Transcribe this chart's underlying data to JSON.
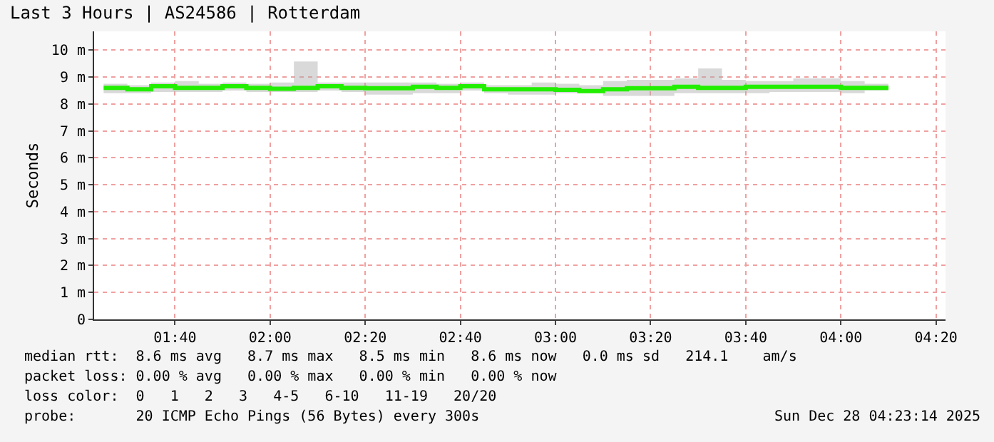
{
  "chart_data": {
    "type": "step",
    "title": "Last 3 Hours | AS24586 | Rotterdam",
    "ylabel": "Seconds",
    "x": [
      "--12-28T01:25",
      "--12-28T01:30",
      "--12-28T01:35",
      "--12-28T01:40",
      "--12-28T01:45",
      "--12-28T01:50",
      "--12-28T01:55",
      "--12-28T02:00",
      "--12-28T02:05",
      "--12-28T02:10",
      "--12-28T02:15",
      "--12-28T02:20",
      "--12-28T02:25",
      "--12-28T02:30",
      "--12-28T02:35",
      "--12-28T02:40",
      "--12-28T02:45",
      "--12-28T02:50",
      "--12-28T02:55",
      "--12-28T03:00",
      "--12-28T03:05",
      "--12-28T03:10",
      "--12-28T03:15",
      "--12-28T03:20",
      "--12-28T03:25",
      "--12-28T03:30",
      "--12-28T03:35",
      "--12-28T03:40",
      "--12-28T03:45",
      "--12-28T03:50",
      "--12-28T03:55",
      "--12-28T04:00",
      "--12-28T04:05",
      "--12-28T04:10"
    ],
    "series": [
      {
        "color": "#22ee00",
        "values": [
          8.6,
          8.55,
          8.66,
          8.6,
          8.6,
          8.66,
          8.6,
          8.57,
          8.6,
          8.66,
          8.6,
          8.59,
          8.59,
          8.64,
          8.6,
          8.66,
          8.55,
          8.55,
          8.55,
          8.53,
          8.48,
          8.55,
          8.59,
          8.59,
          8.64,
          8.6,
          8.6,
          8.64,
          8.64,
          8.64,
          8.64,
          8.6,
          8.6,
          8.6
        ],
        "lower": [
          8.4,
          8.4,
          8.45,
          8.45,
          8.45,
          8.5,
          8.45,
          8.45,
          8.45,
          8.5,
          8.45,
          8.35,
          8.35,
          8.4,
          8.4,
          8.5,
          8.4,
          8.35,
          8.35,
          8.4,
          8.4,
          8.3,
          8.3,
          8.3,
          8.4,
          8.4,
          8.4,
          8.4,
          8.45,
          8.45,
          8.45,
          8.4,
          8.5,
          8.5
        ],
        "upper": [
          8.75,
          8.7,
          8.8,
          8.85,
          8.75,
          8.8,
          8.75,
          8.8,
          9.58,
          8.8,
          8.8,
          8.8,
          8.8,
          8.8,
          8.75,
          8.8,
          8.7,
          8.7,
          8.8,
          8.75,
          8.7,
          8.85,
          8.9,
          8.9,
          8.95,
          9.32,
          8.9,
          8.85,
          8.85,
          8.95,
          8.95,
          8.85,
          8.75,
          8.95
        ]
      }
    ],
    "xlim": [
      "--12-28T01:23",
      "--12-28T04:22"
    ],
    "xticks": [
      {
        "value": "--12-28T01:40",
        "label": "01:40"
      },
      {
        "value": "--12-28T02:00",
        "label": "02:00"
      },
      {
        "value": "--12-28T02:20",
        "label": "02:20"
      },
      {
        "value": "--12-28T02:40",
        "label": "02:40"
      },
      {
        "value": "--12-28T03:00",
        "label": "03:00"
      },
      {
        "value": "--12-28T03:20",
        "label": "03:20"
      },
      {
        "value": "--12-28T03:40",
        "label": "03:40"
      },
      {
        "value": "--12-28T04:00",
        "label": "04:00"
      },
      {
        "value": "--12-28T04:20",
        "label": "04:20"
      }
    ],
    "ylim": [
      0,
      10.7
    ],
    "yticks": [
      0,
      {
        "value": 1,
        "label": "1 m"
      },
      {
        "value": 2,
        "label": "2 m"
      },
      {
        "value": 3,
        "label": "3 m"
      },
      {
        "value": 4,
        "label": "4 m"
      },
      {
        "value": 5,
        "label": "5 m"
      },
      {
        "value": 6,
        "label": "6 m"
      },
      {
        "value": 7,
        "label": "7 m"
      },
      {
        "value": 8,
        "label": "8 m"
      },
      {
        "value": 9,
        "label": "9 m"
      },
      {
        "value": 10,
        "label": "10 m"
      }
    ],
    "grid": true,
    "annotations": [
      "median rtt:  8.6 ms avg   8.7 ms max   8.5 ms min   8.6 ms now   0.0 ms sd   214.1    am/s",
      "packet loss: 0.00 % avg   0.00 % max   0.00 % min   0.00 % now",
      "loss color:  0   1   2   3   4-5   6-10   11-19   20/20",
      "probe:       20 ICMP Echo Pings (56 Bytes) every 300s",
      "Sun Dec 28 04:23:14 2025"
    ]
  }
}
